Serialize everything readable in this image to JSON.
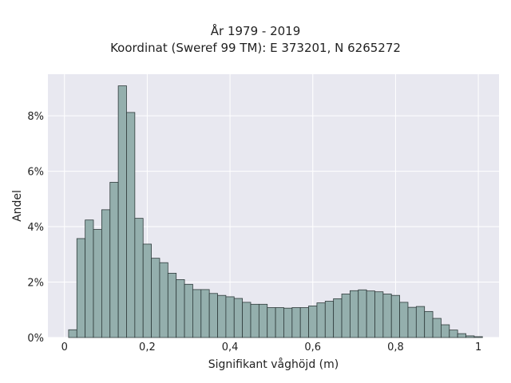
{
  "chart_data": {
    "type": "bar",
    "title": "År 1979 - 2019",
    "subtitle": "Koordinat (Sweref 99 TM): E 373201, N 6265272",
    "xlabel": "Signifikant våghöjd (m)",
    "ylabel": "Andel",
    "xlim": [
      -0.04,
      1.05
    ],
    "ylim": [
      0,
      0.095
    ],
    "x_ticks": [
      0,
      0.2,
      0.4,
      0.6,
      0.8,
      1
    ],
    "x_tick_labels": [
      "0",
      "0,2",
      "0,4",
      "0,6",
      "0,8",
      "1"
    ],
    "y_ticks": [
      0,
      0.02,
      0.04,
      0.06,
      0.08
    ],
    "y_tick_labels": [
      "0%",
      "2%",
      "4%",
      "6%",
      "8%"
    ],
    "grid": true,
    "bin_width": 0.02,
    "bin_starts": [
      0.01,
      0.03,
      0.05,
      0.07,
      0.09,
      0.11,
      0.13,
      0.15,
      0.17,
      0.19,
      0.21,
      0.23,
      0.25,
      0.27,
      0.29,
      0.31,
      0.33,
      0.35,
      0.37,
      0.39,
      0.41,
      0.43,
      0.45,
      0.47,
      0.49,
      0.51,
      0.53,
      0.55,
      0.57,
      0.59,
      0.61,
      0.63,
      0.65,
      0.67,
      0.69,
      0.71,
      0.73,
      0.75,
      0.77,
      0.79,
      0.81,
      0.83,
      0.85,
      0.87,
      0.89,
      0.91,
      0.93,
      0.95,
      0.97,
      0.99
    ],
    "values": [
      0.0028,
      0.0357,
      0.0424,
      0.039,
      0.0461,
      0.056,
      0.0908,
      0.0812,
      0.043,
      0.0337,
      0.0286,
      0.027,
      0.0232,
      0.0209,
      0.0192,
      0.0173,
      0.0173,
      0.0159,
      0.0152,
      0.0147,
      0.0141,
      0.0127,
      0.012,
      0.012,
      0.0108,
      0.0108,
      0.0106,
      0.0108,
      0.0108,
      0.0114,
      0.0125,
      0.0131,
      0.014,
      0.0157,
      0.0169,
      0.0172,
      0.0168,
      0.0165,
      0.0157,
      0.0152,
      0.0127,
      0.0109,
      0.0112,
      0.0094,
      0.0069,
      0.0046,
      0.0027,
      0.0014,
      0.0006,
      0.0003
    ],
    "colors": {
      "bar_fill": "#94afad",
      "bar_edge": "#2f3b3b",
      "plot_bg": "#e8e8f0",
      "grid": "#ffffff"
    }
  }
}
